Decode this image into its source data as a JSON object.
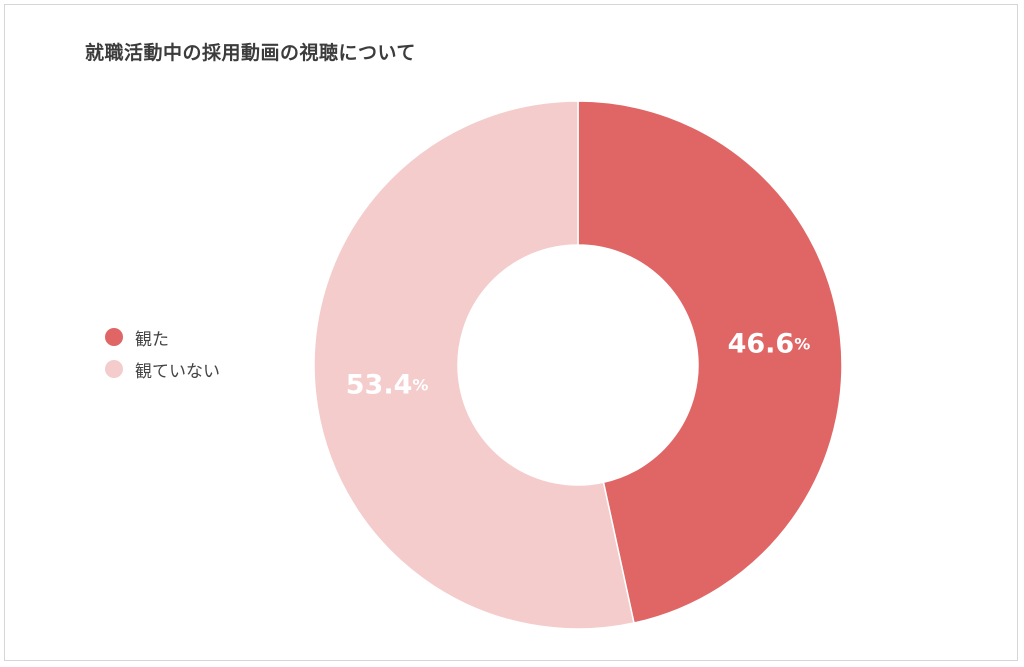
{
  "chart_data": {
    "type": "pie",
    "title": "就職活動中の採用動画の視聴について",
    "categories": [
      "観た",
      "観ていない"
    ],
    "values": [
      46.6,
      53.4
    ],
    "value_labels": [
      "46.6",
      "53.4"
    ],
    "unit": "%",
    "colors": [
      "#e06666",
      "#f4cccc"
    ],
    "legend_position": "left",
    "donut": true,
    "start_angle": "top",
    "direction": "clockwise"
  }
}
